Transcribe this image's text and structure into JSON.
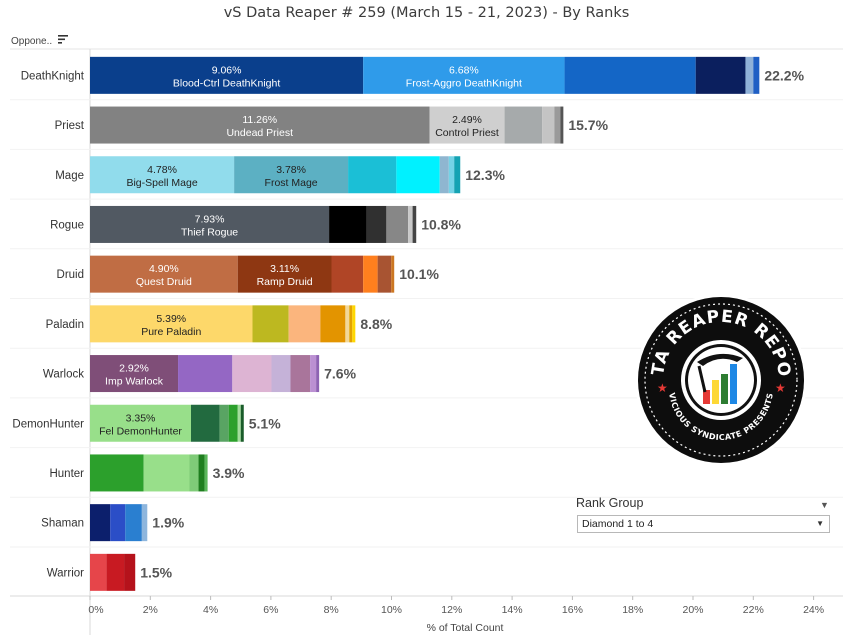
{
  "header": {
    "title": "vS Data Reaper #  259 (March 15 - 21, 2023) - By Ranks"
  },
  "filter": {
    "opponent_label": "Oppone..",
    "rank_group_title": "Rank Group",
    "rank_group_value": "Diamond 1 to 4"
  },
  "logo": {
    "text_top": "DATA REAPER REPORT",
    "text_bottom": "VICIOUS SYNDICATE PRESENTS"
  },
  "chart_data": {
    "type": "bar",
    "orientation": "horizontal-stacked",
    "xlabel": "% of Total Count",
    "xlim": [
      0,
      25
    ],
    "xticks": [
      "0%",
      "2%",
      "4%",
      "6%",
      "8%",
      "10%",
      "12%",
      "14%",
      "16%",
      "18%",
      "20%",
      "22%",
      "24%"
    ],
    "grid": false,
    "rows": [
      {
        "class": "DeathKnight",
        "total": "22.2%",
        "segments": [
          {
            "value": 9.06,
            "color": "#0a3f8c",
            "pct": "9.06%",
            "name": "Blood-Ctrl DeathKnight",
            "dark": true
          },
          {
            "value": 6.68,
            "color": "#2f9bea",
            "pct": "6.68%",
            "name": "Frost-Aggro DeathKnight",
            "dark": true
          },
          {
            "value": 4.35,
            "color": "#1466c6"
          },
          {
            "value": 1.65,
            "color": "#0b1f5e"
          },
          {
            "value": 0.26,
            "color": "#8fb1d8"
          },
          {
            "value": 0.2,
            "color": "#1f5fc4"
          }
        ]
      },
      {
        "class": "Priest",
        "total": "15.7%",
        "segments": [
          {
            "value": 11.26,
            "color": "#828282",
            "pct": "11.26%",
            "name": "Undead Priest",
            "dark": true
          },
          {
            "value": 2.49,
            "color": "#cfcfcf",
            "pct": "2.49%",
            "name": "Control Priest",
            "dark": false
          },
          {
            "value": 1.25,
            "color": "#a6aaab"
          },
          {
            "value": 0.4,
            "color": "#c4c4c4"
          },
          {
            "value": 0.2,
            "color": "#9a9a9a"
          },
          {
            "value": 0.1,
            "color": "#555555"
          }
        ]
      },
      {
        "class": "Mage",
        "total": "12.3%",
        "segments": [
          {
            "value": 4.78,
            "color": "#91dcec",
            "pct": "4.78%",
            "name": "Big-Spell Mage",
            "dark": false
          },
          {
            "value": 3.78,
            "color": "#5cb0c3",
            "pct": "3.78%",
            "name": "Frost Mage",
            "dark": false
          },
          {
            "value": 1.6,
            "color": "#1bbfd6"
          },
          {
            "value": 1.44,
            "color": "#00f1ff"
          },
          {
            "value": 0.3,
            "color": "#8fb6d0"
          },
          {
            "value": 0.18,
            "color": "#74d3e6"
          },
          {
            "value": 0.2,
            "color": "#14a3b3"
          }
        ]
      },
      {
        "class": "Rogue",
        "total": "10.8%",
        "segments": [
          {
            "value": 7.93,
            "color": "#515962",
            "pct": "7.93%",
            "name": "Thief Rogue",
            "dark": true
          },
          {
            "value": 1.25,
            "color": "#000000"
          },
          {
            "value": 0.65,
            "color": "#303030"
          },
          {
            "value": 0.72,
            "color": "#878787"
          },
          {
            "value": 0.15,
            "color": "#c9c9c9"
          },
          {
            "value": 0.12,
            "color": "#444444"
          }
        ]
      },
      {
        "class": "Druid",
        "total": "10.1%",
        "segments": [
          {
            "value": 4.9,
            "color": "#c06d44",
            "pct": "4.90%",
            "name": "Quest Druid",
            "dark": true
          },
          {
            "value": 3.11,
            "color": "#8e3712",
            "pct": "3.11%",
            "name": "Ramp Druid",
            "dark": true
          },
          {
            "value": 1.05,
            "color": "#b04526"
          },
          {
            "value": 0.48,
            "color": "#ff7f1e"
          },
          {
            "value": 0.45,
            "color": "#a85432"
          },
          {
            "value": 0.1,
            "color": "#cc7722"
          }
        ]
      },
      {
        "class": "Paladin",
        "total": "8.8%",
        "segments": [
          {
            "value": 5.39,
            "color": "#fdd86a",
            "pct": "5.39%",
            "name": "Pure Paladin",
            "dark": false
          },
          {
            "value": 1.2,
            "color": "#bdb820"
          },
          {
            "value": 1.05,
            "color": "#fbb57d"
          },
          {
            "value": 0.83,
            "color": "#e39400"
          },
          {
            "value": 0.13,
            "color": "#f2d899"
          },
          {
            "value": 0.1,
            "color": "#e3a300"
          },
          {
            "value": 0.1,
            "color": "#ffd700"
          }
        ]
      },
      {
        "class": "Warlock",
        "total": "7.6%",
        "segments": [
          {
            "value": 2.92,
            "color": "#7f4e78",
            "pct": "2.92%",
            "name": "Imp Warlock",
            "dark": true
          },
          {
            "value": 1.8,
            "color": "#9467c4"
          },
          {
            "value": 1.3,
            "color": "#ddb4d3"
          },
          {
            "value": 0.63,
            "color": "#c5b2d8"
          },
          {
            "value": 0.65,
            "color": "#a9759b"
          },
          {
            "value": 0.2,
            "color": "#bb90d2"
          },
          {
            "value": 0.1,
            "color": "#8e63b3"
          }
        ]
      },
      {
        "class": "DemonHunter",
        "total": "5.1%",
        "segments": [
          {
            "value": 3.35,
            "color": "#98df8a",
            "pct": "3.35%",
            "name": "Fel DemonHunter",
            "dark": false
          },
          {
            "value": 0.95,
            "color": "#226a3f"
          },
          {
            "value": 0.3,
            "color": "#59a463"
          },
          {
            "value": 0.3,
            "color": "#2ca02c"
          },
          {
            "value": 0.1,
            "color": "#a3dd9d"
          },
          {
            "value": 0.1,
            "color": "#1a5c2a"
          }
        ]
      },
      {
        "class": "Hunter",
        "total": "3.9%",
        "segments": [
          {
            "value": 1.78,
            "color": "#2ca02c"
          },
          {
            "value": 1.52,
            "color": "#98df8a"
          },
          {
            "value": 0.3,
            "color": "#7fcb78"
          },
          {
            "value": 0.2,
            "color": "#1e7e1e"
          },
          {
            "value": 0.1,
            "color": "#5ab65a"
          }
        ]
      },
      {
        "class": "Shaman",
        "total": "1.9%",
        "segments": [
          {
            "value": 0.67,
            "color": "#0c1f6c"
          },
          {
            "value": 0.5,
            "color": "#2b4ec7"
          },
          {
            "value": 0.55,
            "color": "#2a7fd0"
          },
          {
            "value": 0.18,
            "color": "#8eb6dd"
          }
        ]
      },
      {
        "class": "Warrior",
        "total": "1.5%",
        "segments": [
          {
            "value": 0.55,
            "color": "#e6454a"
          },
          {
            "value": 0.58,
            "color": "#c81a22"
          },
          {
            "value": 0.37,
            "color": "#b5121b"
          }
        ]
      }
    ]
  }
}
